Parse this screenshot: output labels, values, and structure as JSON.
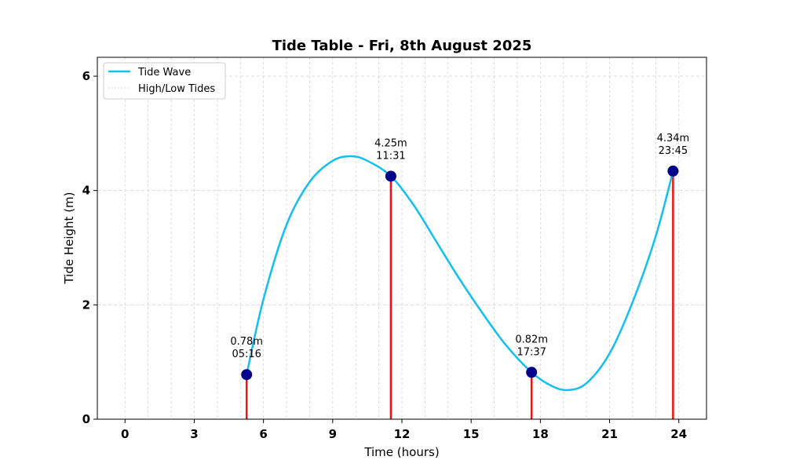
{
  "chart_data": {
    "type": "line",
    "title": "Tide Table - Fri, 8th August 2025",
    "xlabel": "Time (hours)",
    "ylabel": "Tide Height (m)",
    "xlim": [
      -1.2,
      25.2
    ],
    "ylim": [
      0,
      6.33
    ],
    "x_ticks": [
      "0",
      "3",
      "6",
      "9",
      "12",
      "15",
      "18",
      "21",
      "24"
    ],
    "y_ticks": [
      "0",
      "2",
      "4",
      "6"
    ],
    "grid": true,
    "legend_placement": "top-left",
    "legend": [
      "Tide Wave",
      "High/Low Tides"
    ],
    "series": [
      {
        "name": "Tide Wave",
        "color": "#12bff0",
        "x": [
          5.27,
          6,
          7,
          8,
          9,
          9.8,
          10.5,
          11.52,
          12.5,
          13.5,
          14.5,
          15.5,
          16.5,
          17.62,
          18.5,
          19.2,
          20,
          21,
          22,
          23,
          23.75
        ],
        "y": [
          0.78,
          2.1,
          3.4,
          4.15,
          4.52,
          4.6,
          4.52,
          4.25,
          3.75,
          3.1,
          2.45,
          1.85,
          1.3,
          0.82,
          0.58,
          0.51,
          0.63,
          1.15,
          2.05,
          3.2,
          4.34
        ]
      }
    ],
    "tides": [
      {
        "x": 5.27,
        "y": 0.78,
        "height_label": "0.78m",
        "time_label": "05:16"
      },
      {
        "x": 11.52,
        "y": 4.25,
        "height_label": "4.25m",
        "time_label": "11:31"
      },
      {
        "x": 17.62,
        "y": 0.82,
        "height_label": "0.82m",
        "time_label": "17:37"
      },
      {
        "x": 23.75,
        "y": 4.34,
        "height_label": "4.34m",
        "time_label": "23:45"
      }
    ],
    "colors": {
      "curve": "#12bff0",
      "stem": "#ee1111",
      "marker": "#00008b",
      "grid": "#d3d3d3"
    }
  }
}
